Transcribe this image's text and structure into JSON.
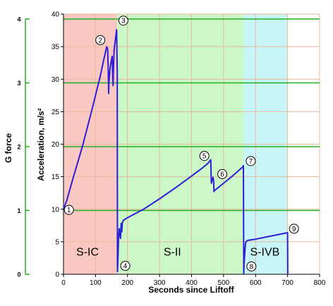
{
  "chart_data": {
    "type": "line",
    "title": "",
    "xlabel": "Seconds since Liftoff",
    "ylabel": "Acceleration, m/s²",
    "y2label": "G force",
    "xlim": [
      0,
      800
    ],
    "ylim": [
      0,
      40
    ],
    "x_ticks": [
      "0",
      "100",
      "200",
      "300",
      "400",
      "500",
      "600",
      "700",
      "800"
    ],
    "y_ticks": [
      "0",
      "5",
      "10",
      "15",
      "20",
      "25",
      "30",
      "35",
      "40"
    ],
    "g_ticks": [
      "0",
      "1",
      "2",
      "3",
      "4"
    ],
    "g_scale_ms2": 9.81,
    "grid": true,
    "colors": {
      "line": "#2d1fd6",
      "grid": "#e8b89a",
      "g_lines": "#22b022",
      "s_ic_band": "#f9c8c2",
      "s_ii_band": "#ccf7c6",
      "s_ivb_band": "#c8f5f7",
      "axis": "#000000"
    },
    "stages": [
      {
        "label": "S-IC",
        "x_start": 0,
        "x_end": 168,
        "label_x": 75,
        "label_y": 3.5
      },
      {
        "label": "S-II",
        "x_start": 168,
        "x_end": 562,
        "label_x": 340,
        "label_y": 3.5
      },
      {
        "label": "S-IVB",
        "x_start": 562,
        "x_end": 700,
        "label_x": 629,
        "label_y": 3.5
      }
    ],
    "markers": [
      {
        "label": "1",
        "x": 17,
        "y": 9.9
      },
      {
        "label": "2",
        "x": 115,
        "y": 36.0
      },
      {
        "label": "3",
        "x": 187,
        "y": 39.0
      },
      {
        "label": "4",
        "x": 193,
        "y": 1.3
      },
      {
        "label": "5",
        "x": 440,
        "y": 18.2
      },
      {
        "label": "6",
        "x": 496,
        "y": 15.4
      },
      {
        "label": "7",
        "x": 585,
        "y": 17.4
      },
      {
        "label": "8",
        "x": 587,
        "y": 1.2
      },
      {
        "label": "9",
        "x": 720,
        "y": 7.0
      }
    ],
    "series": [
      {
        "x": [
          0,
          10,
          30,
          60,
          90,
          115,
          128,
          135,
          138,
          140,
          141,
          142,
          145,
          148,
          152,
          154,
          155,
          156,
          158,
          162,
          166,
          168,
          168.5,
          170,
          171,
          172,
          174,
          176,
          178,
          180,
          182,
          184,
          185,
          187,
          200,
          250,
          300,
          350,
          400,
          430,
          450,
          460,
          462,
          463,
          465,
          467,
          469,
          470,
          472,
          475,
          500,
          530,
          560,
          562,
          563,
          564,
          566,
          568,
          570,
          575,
          600,
          650,
          700,
          700.5
        ],
        "y": [
          10.1,
          11.3,
          14.8,
          19.8,
          25.5,
          30.5,
          33.5,
          35.0,
          34.6,
          31.0,
          27.8,
          29.5,
          31.5,
          32.5,
          33.5,
          30.0,
          29.0,
          31.5,
          34.5,
          36.0,
          37.6,
          31.0,
          0.4,
          2.0,
          4.0,
          5.5,
          7.0,
          6.3,
          5.5,
          7.8,
          6.5,
          8.0,
          8.0,
          8.3,
          8.7,
          10.0,
          11.6,
          13.3,
          15.1,
          16.2,
          17.0,
          17.6,
          14.0,
          14.3,
          14.5,
          14.9,
          14.4,
          12.7,
          12.9,
          13.0,
          14.0,
          15.2,
          16.5,
          16.7,
          0.1,
          1.5,
          3.0,
          4.4,
          5.0,
          5.2,
          5.4,
          5.9,
          6.4,
          0.1
        ]
      }
    ]
  }
}
